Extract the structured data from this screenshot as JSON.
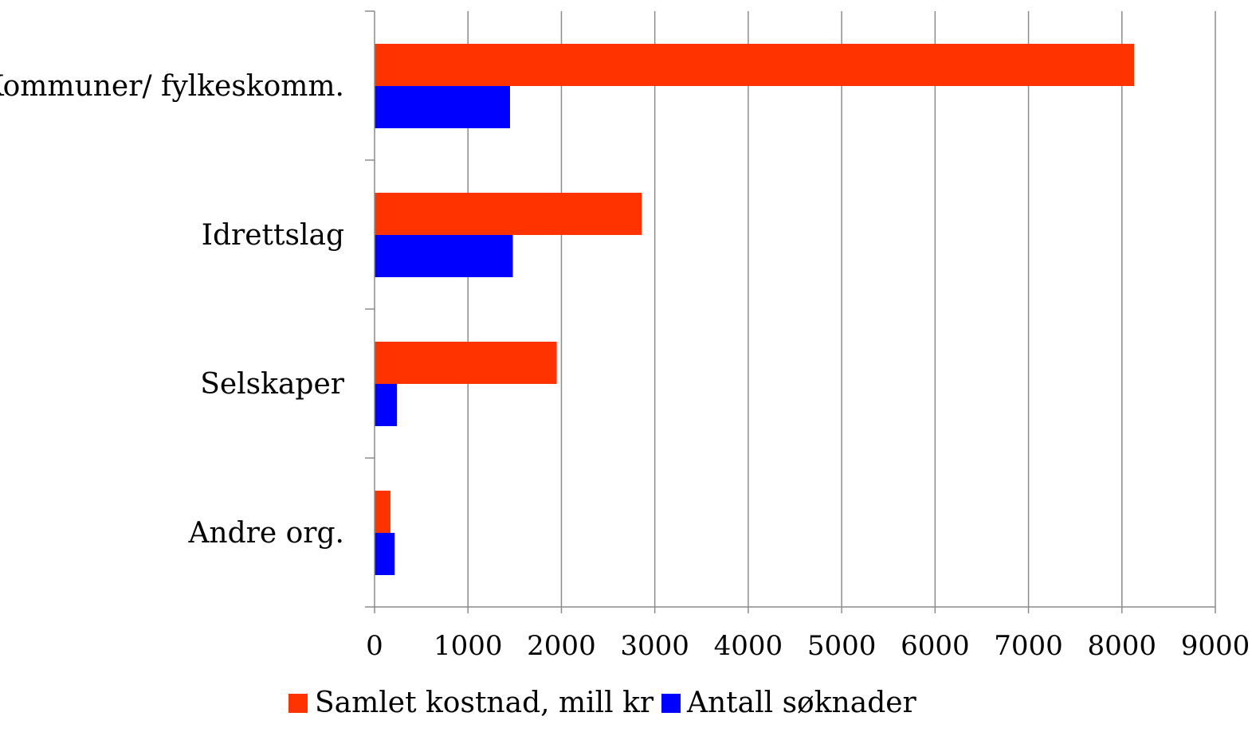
{
  "chart_data": {
    "type": "bar",
    "orientation": "horizontal",
    "categories": [
      "Kommuner/ fylkeskomm.",
      "Idrettslag",
      "Selskaper",
      "Andre org."
    ],
    "series": [
      {
        "name": "Samlet kostnad, mill kr",
        "color": "#ff3300",
        "values": [
          8130,
          2860,
          1950,
          170
        ]
      },
      {
        "name": "Antall søknader",
        "color": "#0000ff",
        "values": [
          1450,
          1480,
          240,
          215
        ]
      }
    ],
    "xlim": [
      0,
      9000
    ],
    "xticks": [
      "0",
      "1000",
      "2000",
      "3000",
      "4000",
      "5000",
      "6000",
      "7000",
      "8000",
      "9000"
    ],
    "title": "",
    "xlabel": "",
    "ylabel": "",
    "grid": "vertical",
    "legend_position": "bottom"
  }
}
